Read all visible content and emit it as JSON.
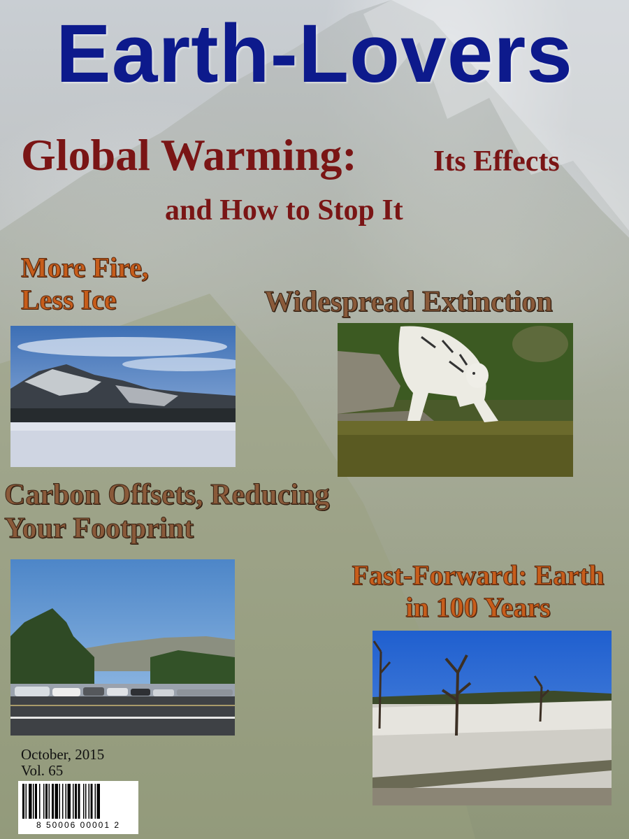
{
  "masthead": {
    "title": "Earth-Lovers"
  },
  "cover_story": {
    "title_main": "Global Warming:",
    "title_rest": "Its Effects",
    "title_line2": "and How to Stop It"
  },
  "stories": [
    {
      "lines": [
        "More Fire,",
        "Less Ice"
      ]
    },
    {
      "lines": [
        "Widespread Extinction"
      ]
    },
    {
      "lines": [
        "Carbon Offsets, Reducing",
        "Your Footprint"
      ]
    },
    {
      "lines": [
        "Fast-Forward: Earth",
        "in 100 Years"
      ]
    }
  ],
  "issue": {
    "date": "October, 2015",
    "volume": "Vol. 65",
    "barcode_number": "8  50006  00001  2"
  },
  "colors": {
    "masthead": "#0d1a8c",
    "headline": "#7a1515",
    "teaser_orange": "#c75d1b",
    "teaser_brown": "#8a5a3a"
  }
}
